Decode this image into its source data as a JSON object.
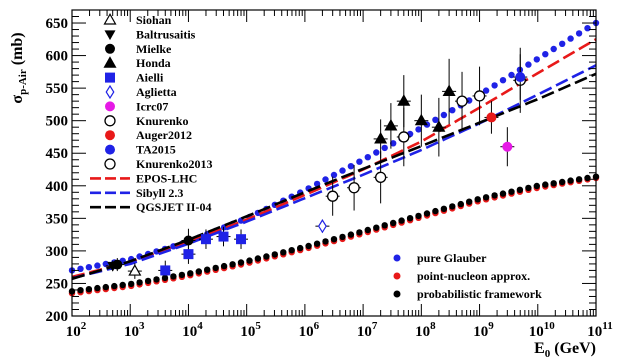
{
  "chart_data": {
    "type": "scatter",
    "xlabel": "E",
    "xlabel_sub": "0",
    "xlabel_unit": " (GeV)",
    "ylabel": "σ",
    "ylabel_sub": "p-Air",
    "ylabel_unit": " (mb)",
    "xscale": "log",
    "xlim": [
      100,
      100000000000
    ],
    "ylim": [
      200,
      670
    ],
    "grid": false,
    "x_ticks": [
      {
        "value": 100,
        "base": "10",
        "exp": "2"
      },
      {
        "value": 1000,
        "base": "10",
        "exp": "3"
      },
      {
        "value": 10000,
        "base": "10",
        "exp": "4"
      },
      {
        "value": 100000,
        "base": "10",
        "exp": "5"
      },
      {
        "value": 1000000,
        "base": "10",
        "exp": "6"
      },
      {
        "value": 10000000,
        "base": "10",
        "exp": "7"
      },
      {
        "value": 100000000,
        "base": "10",
        "exp": "8"
      },
      {
        "value": 1000000000,
        "base": "10",
        "exp": "9"
      },
      {
        "value": 10000000000,
        "base": "10",
        "exp": "10"
      },
      {
        "value": 100000000000,
        "base": "10",
        "exp": "11"
      }
    ],
    "y_ticks": [
      {
        "value": 200,
        "label": "200"
      },
      {
        "value": 250,
        "label": "250"
      },
      {
        "value": 300,
        "label": "300"
      },
      {
        "value": 350,
        "label": "350"
      },
      {
        "value": 400,
        "label": "400"
      },
      {
        "value": 450,
        "label": "450"
      },
      {
        "value": 500,
        "label": "500"
      },
      {
        "value": 550,
        "label": "550"
      },
      {
        "value": 600,
        "label": "600"
      },
      {
        "value": 650,
        "label": "650"
      }
    ],
    "model_curves": [
      {
        "name": "pure Glauber",
        "color": "#1f22e6",
        "marker": "dot",
        "x": [
          100,
          1000,
          10000,
          100000,
          1000000,
          10000000,
          100000000,
          1000000000,
          10000000000,
          100000000000
        ],
        "y": [
          270,
          287,
          314,
          350,
          393,
          440,
          489,
          540,
          595,
          650
        ]
      },
      {
        "name": "point-nucleon approx.",
        "color": "#e81919",
        "marker": "dot",
        "x": [
          100,
          1000,
          10000,
          100000,
          1000000,
          10000000,
          100000000,
          1000000000,
          10000000000,
          100000000000
        ],
        "y": [
          235,
          246,
          262,
          281,
          303,
          327,
          352,
          377,
          397,
          412
        ]
      },
      {
        "name": "probabilistic framework",
        "color": "#000000",
        "marker": "dot",
        "x": [
          100,
          1000,
          10000,
          100000,
          1000000,
          10000000,
          100000000,
          1000000000,
          10000000000,
          100000000000
        ],
        "y": [
          238,
          249,
          265,
          284,
          306,
          330,
          355,
          380,
          400,
          414
        ]
      }
    ],
    "dashed_curves": [
      {
        "name": "EPOS-LHC",
        "color": "#e81919",
        "x": [
          100,
          1000,
          10000,
          100000,
          1000000,
          10000000,
          100000000,
          1000000000,
          10000000000,
          100000000000
        ],
        "y": [
          260,
          283,
          314,
          348,
          386,
          425,
          468,
          520,
          573,
          625
        ]
      },
      {
        "name": "Sibyll 2.3",
        "color": "#1f22e6",
        "x": [
          100,
          1000,
          10000,
          100000,
          1000000,
          10000000,
          100000000,
          1000000000,
          10000000000,
          100000000000
        ],
        "y": [
          258,
          280,
          311,
          345,
          381,
          417,
          455,
          496,
          540,
          585
        ]
      },
      {
        "name": "QGSJET II-04",
        "color": "#000000",
        "x": [
          100,
          1000,
          10000,
          100000,
          1000000,
          10000000,
          100000000,
          1000000000,
          10000000000,
          100000000000
        ],
        "y": [
          257,
          284,
          317,
          353,
          390,
          426,
          461,
          497,
          533,
          572
        ]
      }
    ],
    "experiments": [
      {
        "name": "Siohan",
        "marker": "triangle-up-open",
        "color": "#000000",
        "points": [
          {
            "x": 1200,
            "y": 269,
            "yerr": 12
          }
        ]
      },
      {
        "name": "Baltrusaitis",
        "marker": "triangle-down",
        "color": "#000000",
        "points": [
          {
            "x": 500,
            "y": 277,
            "yerr": 8
          }
        ]
      },
      {
        "name": "Mielke",
        "marker": "circle",
        "color": "#000000",
        "points": [
          {
            "x": 600,
            "y": 279,
            "yerr": 10
          },
          {
            "x": 10000,
            "y": 316,
            "yerr": 18
          }
        ]
      },
      {
        "name": "Honda",
        "marker": "triangle-up",
        "color": "#000000",
        "points": [
          {
            "x": 20000000,
            "y": 472,
            "yerr": 30
          },
          {
            "x": 30000000,
            "y": 492,
            "yerr": 35
          },
          {
            "x": 50000000,
            "y": 530,
            "yerr": 40
          },
          {
            "x": 100000000,
            "y": 500,
            "yerr": 40
          },
          {
            "x": 200000000,
            "y": 490,
            "yerr": 45
          },
          {
            "x": 300000000,
            "y": 545,
            "yerr": 50
          }
        ]
      },
      {
        "name": "Aielli",
        "marker": "square",
        "color": "#1f22e6",
        "points": [
          {
            "x": 4000,
            "y": 270,
            "yerr": 15
          },
          {
            "x": 10000,
            "y": 295,
            "yerr": 15
          },
          {
            "x": 20000,
            "y": 318,
            "yerr": 15
          },
          {
            "x": 40000,
            "y": 322,
            "yerr": 15
          },
          {
            "x": 80000,
            "y": 318,
            "yerr": 15
          }
        ]
      },
      {
        "name": "Aglietta",
        "marker": "diamond-open",
        "color": "#1f22e6",
        "points": [
          {
            "x": 2000000,
            "y": 338,
            "yerr": 10
          }
        ]
      },
      {
        "name": "Icrc07",
        "marker": "circle",
        "color": "#e619e6",
        "points": [
          {
            "x": 3000000000,
            "y": 460,
            "yerr": 30
          }
        ]
      },
      {
        "name": "Knurenko",
        "marker": "circle-open",
        "color": "#000000",
        "points": [
          {
            "x": 3000000,
            "y": 384,
            "yerr": 30
          },
          {
            "x": 7000000,
            "y": 397,
            "yerr": 35
          },
          {
            "x": 20000000,
            "y": 413,
            "yerr": 40
          },
          {
            "x": 50000000,
            "y": 475,
            "yerr": 45
          },
          {
            "x": 500000000,
            "y": 530,
            "yerr": 45
          },
          {
            "x": 1000000000,
            "y": 538,
            "yerr": 45
          },
          {
            "x": 5000000000,
            "y": 562,
            "yerr": 50
          }
        ]
      },
      {
        "name": "Auger2012",
        "marker": "circle",
        "color": "#e81919",
        "points": [
          {
            "x": 1600000000,
            "y": 505,
            "yerr": 25
          }
        ]
      },
      {
        "name": "TA2015",
        "marker": "circle",
        "color": "#1f22e6",
        "points": [
          {
            "x": 5000000000,
            "y": 567,
            "yerr": 35
          }
        ]
      },
      {
        "name": "Knurenko2013",
        "marker": "circle-open",
        "color": "#000000",
        "points": []
      }
    ],
    "legend_left": [
      {
        "label": "Siohan",
        "marker": "triangle-up-open",
        "color": "#000000"
      },
      {
        "label": "Baltrusaitis",
        "marker": "triangle-down",
        "color": "#000000"
      },
      {
        "label": "Mielke",
        "marker": "circle",
        "color": "#000000"
      },
      {
        "label": "Honda",
        "marker": "triangle-up",
        "color": "#000000"
      },
      {
        "label": "Aielli",
        "marker": "square",
        "color": "#1f22e6"
      },
      {
        "label": "Aglietta",
        "marker": "diamond-open",
        "color": "#1f22e6"
      },
      {
        "label": "Icrc07",
        "marker": "circle",
        "color": "#e619e6"
      },
      {
        "label": "Knurenko",
        "marker": "circle-open",
        "color": "#000000"
      },
      {
        "label": "Auger2012",
        "marker": "circle",
        "color": "#e81919"
      },
      {
        "label": "TA2015",
        "marker": "circle",
        "color": "#1f22e6"
      },
      {
        "label": "Knurenko2013",
        "marker": "circle-open",
        "color": "#000000"
      },
      {
        "label": "EPOS-LHC",
        "marker": "dash",
        "color": "#e81919"
      },
      {
        "label": "Sibyll 2.3",
        "marker": "dash",
        "color": "#1f22e6"
      },
      {
        "label": "QGSJET II-04",
        "marker": "dash",
        "color": "#000000"
      }
    ],
    "legend_right": [
      {
        "label": "pure Glauber",
        "marker": "circle",
        "color": "#1f22e6"
      },
      {
        "label": "point-nucleon approx.",
        "marker": "circle",
        "color": "#e81919"
      },
      {
        "label": "probabilistic framework",
        "marker": "circle",
        "color": "#000000"
      }
    ]
  }
}
